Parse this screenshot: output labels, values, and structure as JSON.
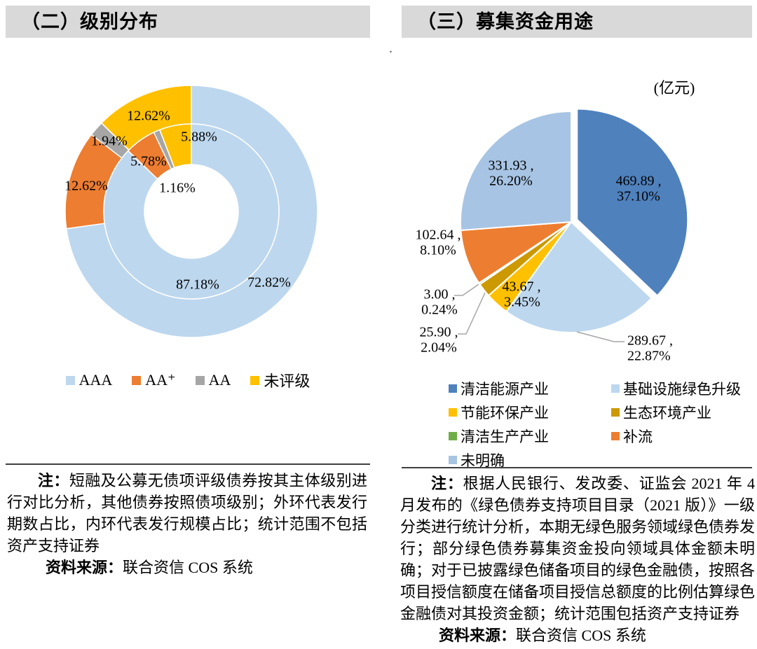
{
  "left_panel": {
    "title": "（二）级别分布",
    "legend": [
      {
        "label": "AAA",
        "color": "#BDD7EE"
      },
      {
        "label": "AA⁺",
        "color": "#ED7D31"
      },
      {
        "label": "AA",
        "color": "#A6A6A6"
      },
      {
        "label": "未评级",
        "color": "#FFC000"
      }
    ],
    "note": {
      "prefix": "注：",
      "body": "短融及公募无债项评级债券按其主体级别进行对比分析，其他债券按照债项级别；外环代表发行期数占比，内环代表发行规模占比；统计范围不包括资产支持证券"
    },
    "source": {
      "prefix": "资料来源：",
      "body": "联合资信 COS 系统"
    }
  },
  "right_panel": {
    "title": "（三）募集资金用途",
    "unit": "(亿元)",
    "legend": [
      {
        "label": "清洁能源产业",
        "color": "#4F81BD"
      },
      {
        "label": "基础设施绿色升级",
        "color": "#BDD7EE"
      },
      {
        "label": "节能环保产业",
        "color": "#FFC000"
      },
      {
        "label": "生态环境产业",
        "color": "#CC9900"
      },
      {
        "label": "清洁生产产业",
        "color": "#70AD47"
      },
      {
        "label": "补流",
        "color": "#ED7D31"
      },
      {
        "label": "未明确",
        "color": "#A7C4E4"
      }
    ],
    "note": {
      "prefix": "注：",
      "body": "根据人民银行、发改委、证监会 2021 年 4 月发布的《绿色债券支持项目目录（2021 版）》一级分类进行统计分析，本期无绿色服务领域绿色债券发行；部分绿色债券募集资金投向领域具体金额未明确；对于已披露绿色储备项目的绿色金融债，按照各项目授信额度在储备项目授信总额度的比例估算绿色金融债对其投资金额；统计范围包括资产支持证券"
    },
    "source": {
      "prefix": "资料来源：",
      "body": "联合资信 COS 系统"
    }
  },
  "chart_data": [
    {
      "type": "donut",
      "title": "级别分布",
      "categories": [
        "AAA",
        "AA+",
        "AA",
        "未评级"
      ],
      "colors": [
        "#BDD7EE",
        "#ED7D31",
        "#A6A6A6",
        "#FFC000"
      ],
      "series": [
        {
          "name": "外环：发行期数占比",
          "values": [
            72.82,
            12.62,
            1.94,
            12.62
          ],
          "labels": [
            "72.82%",
            "12.62%",
            "1.94%",
            "12.62%"
          ]
        },
        {
          "name": "内环：发行规模占比",
          "values": [
            87.18,
            5.78,
            1.16,
            5.88
          ],
          "labels": [
            "87.18%",
            "5.78%",
            "1.16%",
            "5.88%"
          ]
        }
      ],
      "legend_position": "bottom"
    },
    {
      "type": "pie",
      "title": "募集资金用途",
      "unit": "(亿元)",
      "categories": [
        "清洁能源产业",
        "基础设施绿色升级",
        "节能环保产业",
        "生态环境产业",
        "清洁生产产业",
        "补流",
        "未明确"
      ],
      "values": [
        469.89,
        289.67,
        43.67,
        25.9,
        3.0,
        102.64,
        331.93
      ],
      "percents": [
        37.1,
        22.87,
        3.45,
        2.04,
        0.24,
        8.1,
        26.2
      ],
      "labels": [
        [
          "469.89 ,",
          "37.10%"
        ],
        [
          "289.67 ,",
          "22.87%"
        ],
        [
          "43.67 ,",
          "3.45%"
        ],
        [
          "25.90 ,",
          "2.04%"
        ],
        [
          "3.00 ,",
          "0.24%"
        ],
        [
          "102.64 ,",
          "8.10%"
        ],
        [
          "331.93 ,",
          "26.20%"
        ]
      ],
      "colors": [
        "#4F81BD",
        "#BDD7EE",
        "#FFC000",
        "#CC9900",
        "#70AD47",
        "#ED7D31",
        "#A7C4E4"
      ],
      "exploded_slice": "清洁能源产业",
      "legend_position": "bottom"
    }
  ]
}
